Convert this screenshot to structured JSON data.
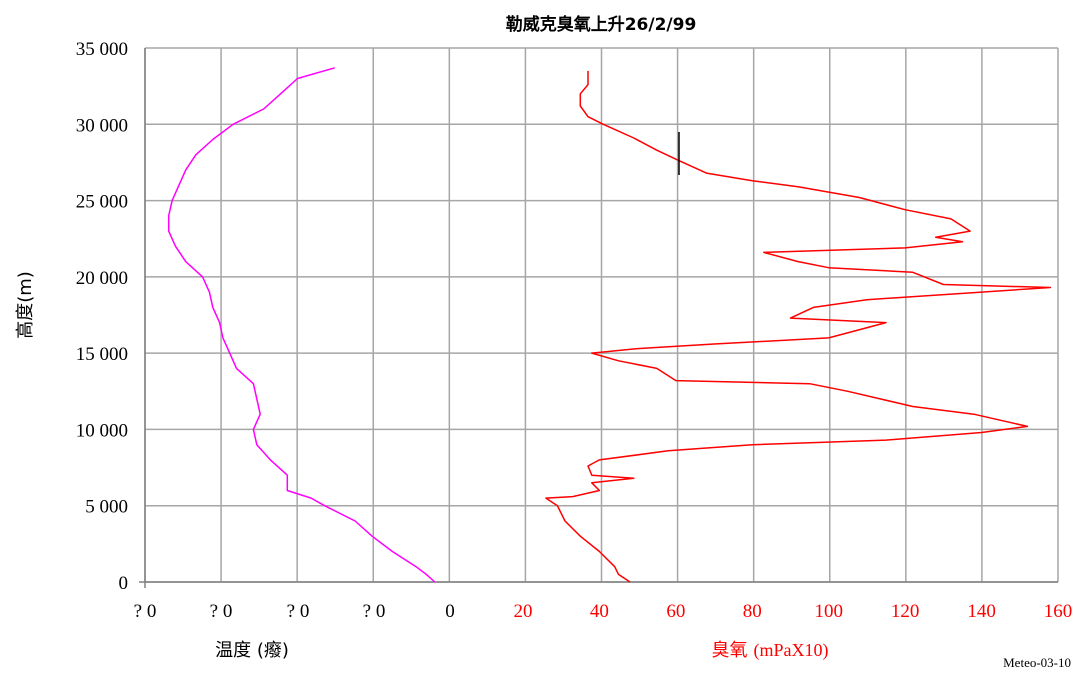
{
  "chart_data": {
    "type": "line",
    "title": "勒威克臭氧上升26/2/99",
    "ylabel": "高度(m)",
    "ylim": [
      0,
      35000
    ],
    "y_ticks": [
      "0",
      "5 000",
      "10 000",
      "15 000",
      "20 000",
      "25 000",
      "30 000",
      "35 000"
    ],
    "grid": true,
    "temperature_axis": {
      "label": "温度 (癈)",
      "color": "#ff00ff",
      "tick_labels": [
        "? 0",
        "? 0",
        "? 0",
        "? 0",
        "0"
      ],
      "xlim": [
        -80,
        10
      ]
    },
    "ozone_axis": {
      "label_main": "臭氧",
      "label_unit": "(mPaX10)",
      "color": "#ff0000",
      "tick_labels": [
        "20",
        "40",
        "60",
        "80",
        "100",
        "120",
        "140",
        "160"
      ],
      "xlim": [
        20,
        160
      ]
    },
    "temperature_profile": [
      [
        5.5,
        0
      ],
      [
        3,
        500
      ],
      [
        0,
        1000
      ],
      [
        -7,
        2000
      ],
      [
        -13,
        3000
      ],
      [
        -18,
        4000
      ],
      [
        -27,
        5000
      ],
      [
        -31,
        5500
      ],
      [
        -38,
        6000
      ],
      [
        -38,
        7000
      ],
      [
        -43,
        8000
      ],
      [
        -47,
        9000
      ],
      [
        -48,
        10000
      ],
      [
        -46,
        11000
      ],
      [
        -47,
        12000
      ],
      [
        -48,
        13000
      ],
      [
        -53,
        14000
      ],
      [
        -55,
        15000
      ],
      [
        -57,
        16000
      ],
      [
        -58,
        17000
      ],
      [
        -60,
        18000
      ],
      [
        -61,
        19000
      ],
      [
        -63,
        20000
      ],
      [
        -68,
        21000
      ],
      [
        -71,
        22000
      ],
      [
        -73,
        23000
      ],
      [
        -73,
        24000
      ],
      [
        -72,
        25000
      ],
      [
        -70,
        26000
      ],
      [
        -68,
        27000
      ],
      [
        -65,
        28000
      ],
      [
        -60,
        29000
      ],
      [
        -54,
        30000
      ],
      [
        -45,
        31000
      ],
      [
        -40,
        32000
      ],
      [
        -35,
        33000
      ],
      [
        -24,
        33700
      ]
    ],
    "ozone_profile": [
      [
        48,
        0
      ],
      [
        45,
        500
      ],
      [
        44,
        1000
      ],
      [
        40,
        2000
      ],
      [
        35,
        3000
      ],
      [
        31,
        4000
      ],
      [
        29,
        5000
      ],
      [
        26,
        5500
      ],
      [
        33,
        5600
      ],
      [
        40,
        6000
      ],
      [
        38,
        6500
      ],
      [
        49,
        6800
      ],
      [
        38,
        7000
      ],
      [
        37,
        7600
      ],
      [
        40,
        8000
      ],
      [
        58,
        8600
      ],
      [
        80,
        9000
      ],
      [
        115,
        9300
      ],
      [
        140,
        9800
      ],
      [
        152,
        10200
      ],
      [
        145,
        10600
      ],
      [
        138,
        11000
      ],
      [
        122,
        11500
      ],
      [
        105,
        12500
      ],
      [
        95,
        13000
      ],
      [
        60,
        13200
      ],
      [
        55,
        14000
      ],
      [
        45,
        14500
      ],
      [
        38,
        15000
      ],
      [
        50,
        15300
      ],
      [
        70,
        15600
      ],
      [
        100,
        16000
      ],
      [
        115,
        17000
      ],
      [
        90,
        17300
      ],
      [
        96,
        18000
      ],
      [
        110,
        18500
      ],
      [
        140,
        19000
      ],
      [
        158,
        19300
      ],
      [
        130,
        19500
      ],
      [
        122,
        20300
      ],
      [
        100,
        20600
      ],
      [
        92,
        21000
      ],
      [
        83,
        21600
      ],
      [
        120,
        21900
      ],
      [
        135,
        22300
      ],
      [
        128,
        22600
      ],
      [
        137,
        23000
      ],
      [
        132,
        23800
      ],
      [
        120,
        24400
      ],
      [
        108,
        25200
      ],
      [
        92,
        25900
      ],
      [
        80,
        26300
      ],
      [
        68,
        26800
      ],
      [
        61,
        27600
      ],
      [
        55,
        28300
      ],
      [
        49,
        29100
      ],
      [
        41,
        30000
      ],
      [
        37,
        30500
      ],
      [
        35,
        31200
      ],
      [
        35,
        32000
      ],
      [
        37,
        32600
      ],
      [
        37,
        33500
      ]
    ]
  },
  "credit": "Meteo-03-10"
}
